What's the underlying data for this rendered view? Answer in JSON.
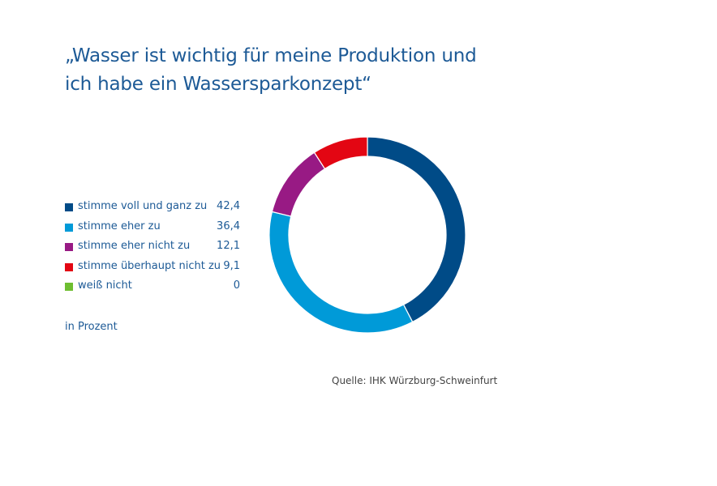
{
  "title_lines": [
    "„Wasser ist wichtig für meine Produktion und",
    "ich habe ein Wassersparkonzept“"
  ],
  "unit_note": "in Prozent",
  "source": "Quelle: IHK Würzburg-Schweinfurt",
  "chart_data": {
    "type": "pie",
    "donut": true,
    "title": "„Wasser ist wichtig für meine Produktion und ich habe ein Wassersparkonzept“",
    "categories": [
      "stimme voll und ganz zu",
      "stimme eher zu",
      "stimme eher nicht zu",
      "stimme überhaupt nicht zu",
      "weiß nicht"
    ],
    "values": [
      42.4,
      36.4,
      12.1,
      9.1,
      0
    ],
    "value_labels": [
      "42,4",
      "36,4",
      "12,1",
      "9,1",
      "0"
    ],
    "colors": [
      "#004b87",
      "#009ad8",
      "#981a84",
      "#e30613",
      "#6ebe31"
    ],
    "legend_position": "left"
  }
}
